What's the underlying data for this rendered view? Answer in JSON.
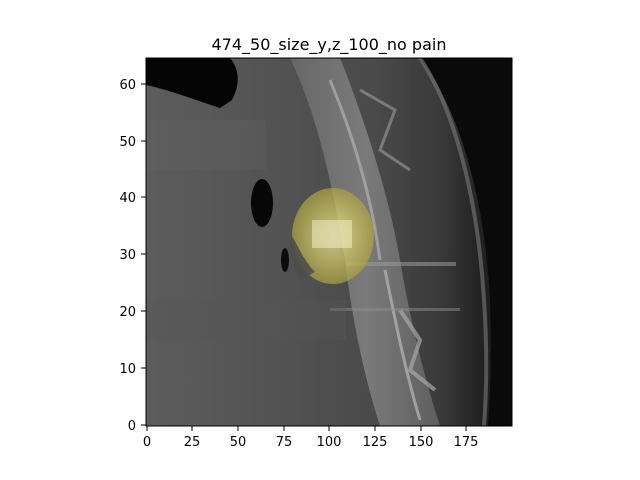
{
  "figure": {
    "title": "474_50_size_y,z_100_no pain"
  },
  "axes": {
    "x": {
      "ticks": [
        "0",
        "25",
        "50",
        "75",
        "100",
        "125",
        "150",
        "175"
      ],
      "tick_values": [
        0,
        25,
        50,
        75,
        100,
        125,
        150,
        175
      ],
      "range": [
        0,
        200
      ]
    },
    "y": {
      "ticks": [
        "0",
        "10",
        "20",
        "30",
        "40",
        "50",
        "60"
      ],
      "tick_values": [
        0,
        10,
        20,
        30,
        40,
        50,
        60
      ],
      "range": [
        0,
        65
      ],
      "origin": "lower"
    }
  },
  "image": {
    "description_type": "grayscale sagittal CT slice of spine",
    "colormap": "gray",
    "overlay": {
      "color": "#c8c040",
      "opacity": 0.65,
      "center_x": 106,
      "center_y": 34,
      "radius_x": 23,
      "radius_y": 11
    }
  }
}
